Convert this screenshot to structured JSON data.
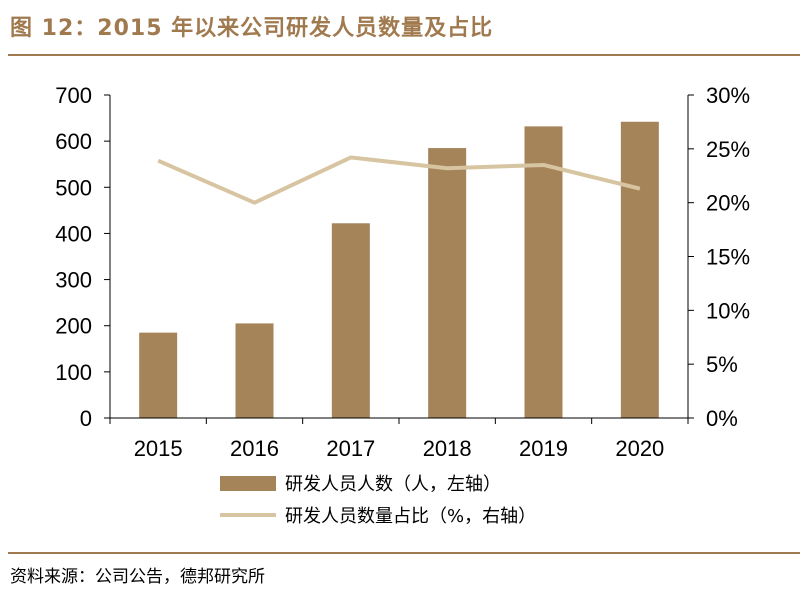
{
  "title": "图 12：2015 年以来公司研发人员数量及占比",
  "source": "资料来源：公司公告，德邦研究所",
  "colors": {
    "bar": "#a5845a",
    "line": "#d7c4a0",
    "accent": "#a07a4e",
    "axis": "#000000"
  },
  "chart_data": {
    "type": "bar",
    "categories": [
      "2015",
      "2016",
      "2017",
      "2018",
      "2019",
      "2020"
    ],
    "series": [
      {
        "name": "研发人员人数（人，左轴）",
        "type": "bar",
        "axis": "left",
        "values": [
          185,
          205,
          422,
          585,
          632,
          642
        ]
      },
      {
        "name": "研发人员数量占比（%，右轴）",
        "type": "line",
        "axis": "right",
        "values": [
          23.9,
          20.0,
          24.2,
          23.2,
          23.5,
          21.3
        ]
      }
    ],
    "y_left": {
      "min": 0,
      "max": 700,
      "ticks": [
        0,
        100,
        200,
        300,
        400,
        500,
        600,
        700
      ]
    },
    "y_right": {
      "min": 0,
      "max": 30,
      "ticks": [
        "0%",
        "5%",
        "10%",
        "15%",
        "20%",
        "25%",
        "30%"
      ]
    },
    "legend": [
      "研发人员人数（人，左轴）",
      "研发人员数量占比（%，右轴）"
    ]
  }
}
